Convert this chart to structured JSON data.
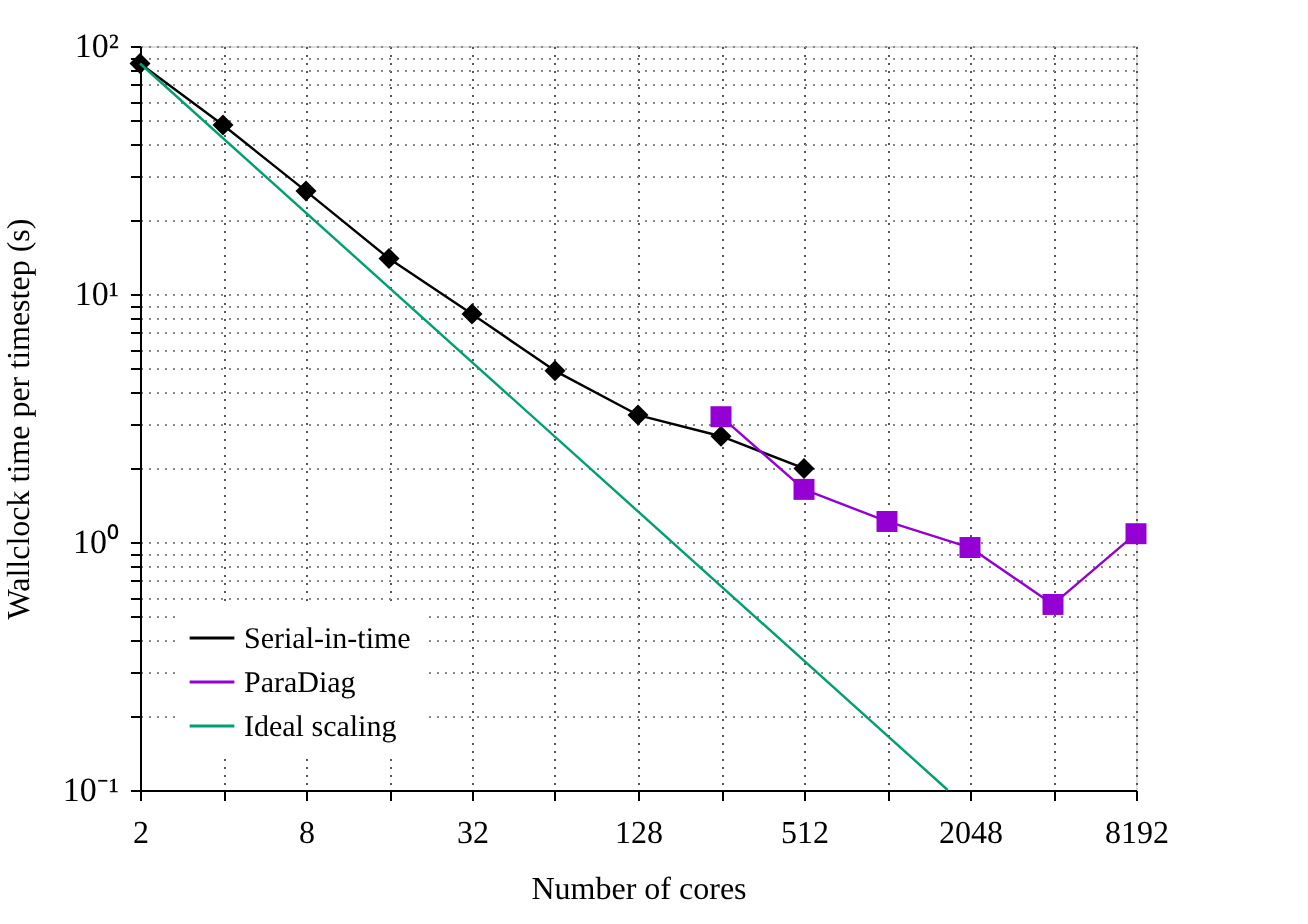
{
  "chart_data": {
    "type": "line",
    "xlabel": "Number of cores",
    "ylabel": "Wallclock time per timestep (s)",
    "log": "xy",
    "grid": true,
    "legend": "bottom left",
    "line_style": "solid",
    "xlim": [
      2,
      8192
    ],
    "ylim": [
      0.1,
      100
    ],
    "xticks": [
      2,
      {
        "value": 4,
        "label": null
      },
      8,
      {
        "value": 16,
        "label": null
      },
      32,
      {
        "value": 64,
        "label": null
      },
      128,
      {
        "value": 256,
        "label": null
      },
      512,
      {
        "value": 1024,
        "label": null
      },
      2048,
      {
        "value": 4096,
        "label": null
      },
      8192
    ],
    "yticks": [
      {
        "value": 0.1,
        "label": "10⁻¹"
      },
      {
        "value": 0.2,
        "label": null
      },
      {
        "value": 0.3,
        "label": null
      },
      {
        "value": 0.4,
        "label": null
      },
      {
        "value": 0.5,
        "label": null
      },
      {
        "value": 0.6,
        "label": null
      },
      {
        "value": 0.7,
        "label": null
      },
      {
        "value": 0.8,
        "label": null
      },
      {
        "value": 0.9,
        "label": null
      },
      {
        "value": 1,
        "label": "10⁰"
      },
      {
        "value": 2,
        "label": null
      },
      {
        "value": 3,
        "label": null
      },
      {
        "value": 4,
        "label": null
      },
      {
        "value": 5,
        "label": null
      },
      {
        "value": 6,
        "label": null
      },
      {
        "value": 7,
        "label": null
      },
      {
        "value": 8,
        "label": null
      },
      {
        "value": 9,
        "label": null
      },
      {
        "value": 10,
        "label": "10¹"
      },
      {
        "value": 20,
        "label": null
      },
      {
        "value": 30,
        "label": null
      },
      {
        "value": 40,
        "label": null
      },
      {
        "value": 50,
        "label": null
      },
      {
        "value": 60,
        "label": null
      },
      {
        "value": 70,
        "label": null
      },
      {
        "value": 80,
        "label": null
      },
      {
        "value": 90,
        "label": null
      },
      {
        "value": 100,
        "label": "10²"
      }
    ],
    "series": [
      {
        "name": "Serial-in-time",
        "color": "#000000",
        "marker": "diamond",
        "x": [
          2,
          4,
          8,
          16,
          32,
          64,
          128,
          256,
          512
        ],
        "values": [
          85,
          48,
          26,
          13.9,
          8.3,
          4.9,
          3.25,
          2.67,
          1.98
        ]
      },
      {
        "name": "ParaDiag",
        "color": "#9400d3",
        "marker": "square",
        "x": [
          256,
          512,
          1024,
          2048,
          4096,
          8192
        ],
        "values": [
          3.2,
          1.63,
          1.21,
          0.95,
          0.56,
          1.08
        ]
      },
      {
        "name": "Ideal scaling",
        "color": "#009e73",
        "marker": "none",
        "x": [
          2,
          1700
        ],
        "values": [
          85,
          0.1
        ]
      }
    ]
  }
}
